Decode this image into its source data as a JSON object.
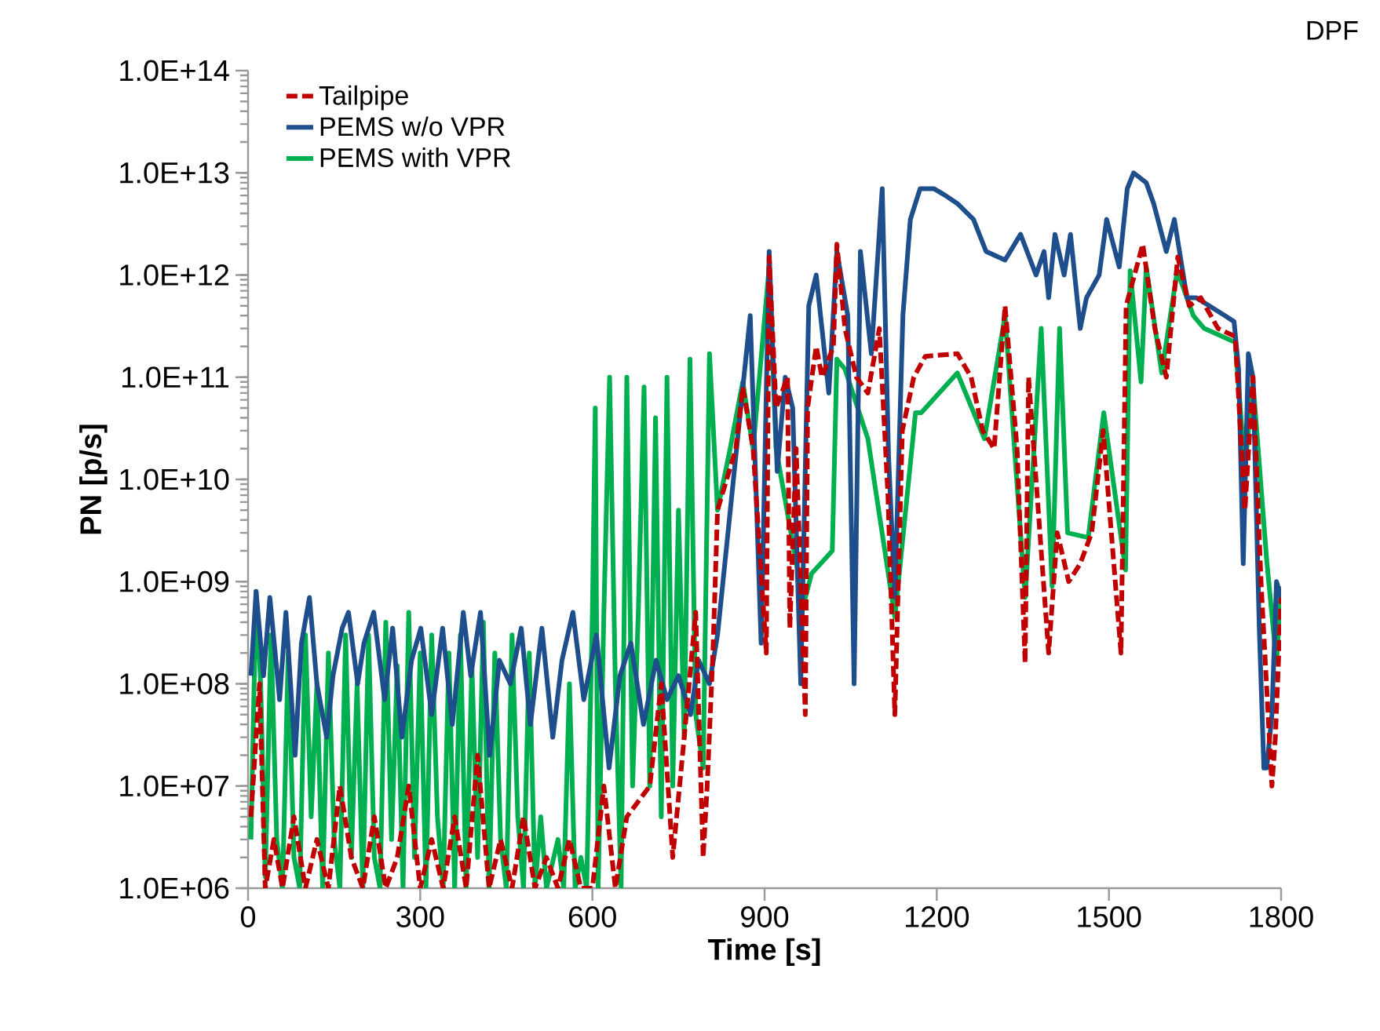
{
  "chart_data": {
    "type": "line",
    "xlabel": "Time [s]",
    "ylabel": "PN [p/s]",
    "annotations": [
      "DPF"
    ],
    "log": "y",
    "legend": "top left",
    "xlim": [
      0,
      1800
    ],
    "xticks": [
      0,
      300,
      600,
      900,
      1200,
      1500,
      1800
    ],
    "ylim": [
      1000000.0,
      100000000000000.0
    ],
    "yticks": [
      {
        "value": 1000000.0,
        "label": "1.0E+06"
      },
      {
        "value": 10000000.0,
        "label": "1.0E+07"
      },
      {
        "value": 100000000.0,
        "label": "1.0E+08"
      },
      {
        "value": 1000000000.0,
        "label": "1.0E+09"
      },
      {
        "value": 10000000000.0,
        "label": "1.0E+10"
      },
      {
        "value": 100000000000.0,
        "label": "1.0E+11"
      },
      {
        "value": 1000000000000.0,
        "label": "1.0E+12"
      },
      {
        "value": 10000000000000.0,
        "label": "1.0E+13"
      },
      {
        "value": 100000000000000.0,
        "label": "1.0E+14"
      }
    ],
    "series": [
      {
        "name": "Tailpipe",
        "color": "#c00000",
        "line_style": "dashed",
        "x": [
          5,
          20,
          30,
          45,
          60,
          80,
          100,
          120,
          140,
          160,
          180,
          200,
          220,
          240,
          260,
          280,
          300,
          320,
          340,
          360,
          380,
          400,
          420,
          440,
          460,
          480,
          500,
          520,
          540,
          560,
          580,
          600,
          620,
          640,
          660,
          700,
          720,
          740,
          760,
          780,
          793,
          800,
          810,
          818,
          850,
          862,
          880,
          903,
          908,
          920,
          940,
          944,
          955,
          971,
          975,
          990,
          1000,
          1020,
          1026,
          1040,
          1060,
          1080,
          1100,
          1115,
          1127,
          1140,
          1160,
          1180,
          1236,
          1260,
          1280,
          1300,
          1319,
          1340,
          1354,
          1360,
          1395,
          1410,
          1430,
          1450,
          1470,
          1490,
          1521,
          1530,
          1559,
          1580,
          1600,
          1620,
          1640,
          1660,
          1690,
          1720,
          1737,
          1751,
          1765,
          1784,
          1790,
          1800
        ],
        "values": [
          5000000.0,
          100000000.0,
          1000000.0,
          3000000.0,
          1000000.0,
          5000000.0,
          1000000.0,
          3000000.0,
          1000000.0,
          10000000.0,
          2000000.0,
          1000000.0,
          5000000.0,
          1000000.0,
          2000000.0,
          10000000.0,
          1000000.0,
          3000000.0,
          1000000.0,
          5000000.0,
          1000000.0,
          20000000.0,
          1000000.0,
          3000000.0,
          1000000.0,
          5000000.0,
          1000000.0,
          2000000.0,
          1000000.0,
          3000000.0,
          1000000.0,
          1000000.0,
          10000000.0,
          1000000.0,
          5000000.0,
          10000000.0,
          100000000.0,
          2000000.0,
          30000000.0,
          500000000.0,
          2000000.0,
          10000000.0,
          200000000.0,
          5000000000.0,
          20000000000.0,
          80000000000.0,
          20000000000.0,
          200000000.0,
          1500000000000.0,
          50000000000.0,
          100000000000.0,
          350000000.0,
          20000000000.0,
          50000000.0,
          50000000000.0,
          200000000000.0,
          100000000000.0,
          200000000000.0,
          2000000000000.0,
          300000000000.0,
          100000000000.0,
          70000000000.0,
          300000000000.0,
          7000000000.0,
          50000000.0,
          30000000000.0,
          100000000000.0,
          160000000000.0,
          170000000000.0,
          100000000000.0,
          30000000000.0,
          20000000000.0,
          500000000000.0,
          20000000000.0,
          160000000.0,
          100000000000.0,
          200000000.0,
          3000000000.0,
          1000000000.0,
          1500000000.0,
          3000000000.0,
          30000000000.0,
          200000000.0,
          500000000000.0,
          2000000000000.0,
          300000000000.0,
          100000000000.0,
          1500000000000.0,
          500000000000.0,
          600000000000.0,
          300000000000.0,
          250000000000.0,
          5000000000.0,
          100000000000.0,
          1000000000.0,
          10000000.0,
          30000000.0,
          700000000.0
        ]
      },
      {
        "name": "PEMS w/o VPR",
        "color": "#1f4e8c",
        "line_style": "solid",
        "x": [
          5,
          14,
          27,
          38,
          55,
          66,
          82,
          93,
          107,
          120,
          137,
          148,
          164,
          175,
          191,
          202,
          219,
          238,
          252,
          268,
          285,
          301,
          320,
          339,
          356,
          375,
          388,
          405,
          421,
          438,
          457,
          476,
          492,
          512,
          531,
          547,
          566,
          585,
          607,
          629,
          648,
          667,
          689,
          711,
          730,
          750,
          771,
          785,
          804,
          818,
          853,
          875,
          894,
          908,
          922,
          936,
          949,
          963,
          977,
          990,
          1012,
          1026,
          1045,
          1056,
          1067,
          1086,
          1105,
          1116,
          1127,
          1141,
          1154,
          1171,
          1195,
          1215,
          1236,
          1264,
          1286,
          1319,
          1346,
          1373,
          1387,
          1395,
          1406,
          1422,
          1433,
          1450,
          1461,
          1483,
          1496,
          1518,
          1532,
          1543,
          1565,
          1578,
          1600,
          1614,
          1636,
          1652,
          1702,
          1718,
          1726,
          1734,
          1743,
          1751,
          1762,
          1770,
          1775,
          1784,
          1792,
          1800
        ],
        "values": [
          120000000.0,
          800000000.0,
          120000000.0,
          700000000.0,
          70000000.0,
          500000000.0,
          20000000.0,
          250000000.0,
          700000000.0,
          100000000.0,
          30000000.0,
          120000000.0,
          350000000.0,
          500000000.0,
          100000000.0,
          250000000.0,
          500000000.0,
          70000000.0,
          350000000.0,
          30000000.0,
          170000000.0,
          350000000.0,
          50000000.0,
          350000000.0,
          40000000.0,
          500000000.0,
          120000000.0,
          500000000.0,
          20000000.0,
          170000000.0,
          100000000.0,
          350000000.0,
          40000000.0,
          350000000.0,
          30000000.0,
          170000000.0,
          500000000.0,
          70000000.0,
          300000000.0,
          15000000.0,
          120000000.0,
          250000000.0,
          40000000.0,
          170000000.0,
          70000000.0,
          120000000.0,
          50000000.0,
          170000000.0,
          100000000.0,
          300000000.0,
          25000000000.0,
          400000000000.0,
          250000000.0,
          1700000000000.0,
          12000000000.0,
          100000000000.0,
          50000000000.0,
          100000000.0,
          500000000000.0,
          1000000000000.0,
          70000000000.0,
          1700000000000.0,
          400000000000.0,
          100000000.0,
          1700000000000.0,
          170000000000.0,
          7000000000000.0,
          17000000000.0,
          700000000.0,
          400000000000.0,
          3500000000000.0,
          7000000000000.0,
          7000000000000.0,
          6000000000000.0,
          5000000000000.0,
          3500000000000.0,
          1700000000000.0,
          1400000000000.0,
          2500000000000.0,
          1000000000000.0,
          1700000000000.0,
          600000000000.0,
          2500000000000.0,
          1000000000000.0,
          2500000000000.0,
          300000000000.0,
          600000000000.0,
          1000000000000.0,
          3500000000000.0,
          1200000000000.0,
          7000000000000.0,
          10000000000000.0,
          8000000000000.0,
          5000000000000.0,
          1700000000000.0,
          3500000000000.0,
          600000000000.0,
          600000000000.0,
          400000000000.0,
          350000000000.0,
          120000000000.0,
          1500000000.0,
          170000000000.0,
          100000000000.0,
          350000000.0,
          15000000.0,
          15000000.0,
          50000000.0,
          1000000000.0,
          700000000.0
        ]
      },
      {
        "name": "PEMS with VPR",
        "color": "#00b050",
        "line_style": "solid",
        "x": [
          5,
          14,
          22,
          30,
          40,
          50,
          60,
          70,
          80,
          90,
          100,
          110,
          120,
          130,
          140,
          150,
          160,
          170,
          180,
          190,
          200,
          210,
          220,
          230,
          240,
          250,
          260,
          270,
          280,
          290,
          300,
          310,
          320,
          330,
          340,
          350,
          360,
          370,
          380,
          390,
          400,
          410,
          420,
          430,
          440,
          450,
          460,
          470,
          480,
          490,
          500,
          510,
          520,
          540,
          550,
          560,
          570,
          580,
          590,
          600,
          605,
          610,
          620,
          630,
          640,
          650,
          660,
          670,
          680,
          690,
          700,
          710,
          720,
          730,
          740,
          750,
          760,
          770,
          780,
          793,
          804,
          818,
          840,
          862,
          880,
          908,
          920,
          968,
          982,
          1018,
          1026,
          1040,
          1080,
          1127,
          1163,
          1173,
          1236,
          1283,
          1319,
          1354,
          1382,
          1401,
          1414,
          1428,
          1464,
          1491,
          1529,
          1537,
          1556,
          1565,
          1592,
          1619,
          1647,
          1666,
          1720,
          1737,
          1751,
          1775,
          1792,
          1800
        ],
        "values": [
          3000000.0,
          800000000.0,
          100000000.0,
          1300000.0,
          300000000.0,
          3000000.0,
          1000000.0,
          200000000.0,
          2000000.0,
          1000000.0,
          300000000.0,
          5000000.0,
          100000000.0,
          1000000.0,
          200000000.0,
          3000000.0,
          1000000.0,
          300000000.0,
          2000000.0,
          100000000.0,
          1000000.0,
          300000000.0,
          2000000.0,
          1000000.0,
          400000000.0,
          3000000.0,
          150000000.0,
          1000000.0,
          500000000.0,
          2000000.0,
          200000000.0,
          1000000.0,
          300000000.0,
          5000000.0,
          1000000.0,
          200000000.0,
          1000000.0,
          300000000.0,
          1000000.0,
          150000000.0,
          2000000.0,
          400000000.0,
          1000000.0,
          200000000.0,
          3000000.0,
          1000000.0,
          300000000.0,
          5000000.0,
          1000000.0,
          200000000.0,
          1000000.0,
          5000000.0,
          1000000.0,
          3000000.0,
          1000000.0,
          100000000.0,
          1000000.0,
          2000000.0,
          1000000.0,
          500000000.0,
          50000000000.0,
          1000000.0,
          500000000.0,
          100000000000.0,
          100000000.0,
          1000000.0,
          100000000000.0,
          10000000.0,
          500000000.0,
          80000000000.0,
          10000000.0,
          40000000000.0,
          5000000.0,
          100000000000.0,
          10000000.0,
          5000000000.0,
          30000000.0,
          150000000000.0,
          50000000.0,
          15000000.0,
          170000000000.0,
          5000000000.0,
          20000000000.0,
          90000000000.0,
          20000000000.0,
          1200000000000.0,
          20000000000.0,
          600000000.0,
          1200000000.0,
          2000000000.0,
          150000000000.0,
          120000000000.0,
          25000000000.0,
          450000000.0,
          45000000000.0,
          45000000000.0,
          110000000000.0,
          25000000000.0,
          400000000000.0,
          700000000.0,
          300000000000.0,
          900000000.0,
          300000000000.0,
          3000000000.0,
          2700000000.0,
          45000000000.0,
          1300000000.0,
          1100000000000.0,
          90000000000.0,
          1200000000000.0,
          110000000000.0,
          1100000000000.0,
          400000000000.0,
          300000000000.0,
          220000000000.0,
          13000000000.0,
          90000000000.0,
          1600000000.0,
          160000000.0,
          900000000.0
        ]
      }
    ]
  }
}
